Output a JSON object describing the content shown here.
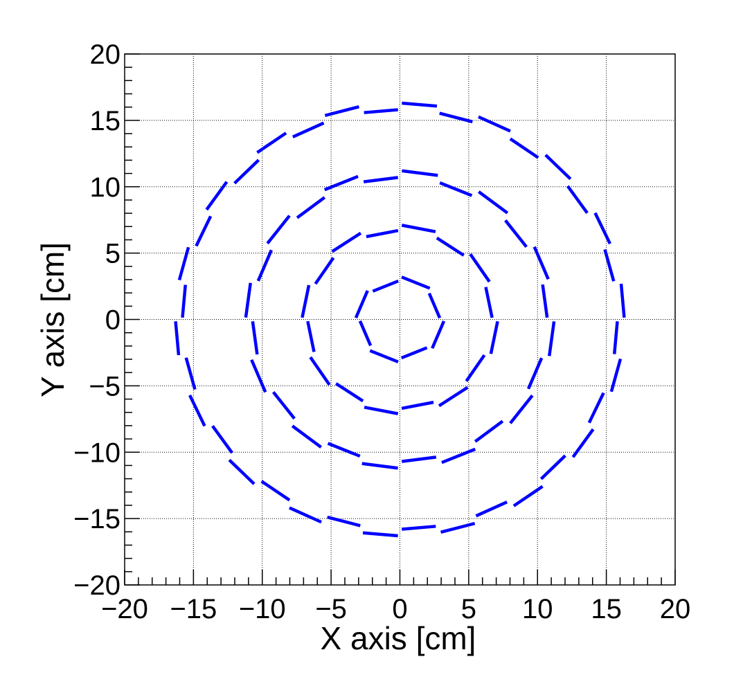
{
  "chart_data": {
    "type": "segments",
    "x_label": "X axis [cm]",
    "y_label": "Y axis [cm]",
    "xlim": [
      -20,
      20
    ],
    "ylim": [
      -20,
      20
    ],
    "xticks": [
      {
        "value": -20,
        "label": "−20"
      },
      {
        "value": -15,
        "label": "−15"
      },
      {
        "value": -10,
        "label": "−10"
      },
      {
        "value": -5,
        "label": "−5"
      },
      0,
      5,
      10,
      15,
      20
    ],
    "yticks": [
      {
        "value": -20,
        "label": "−20"
      },
      {
        "value": -15,
        "label": "−15"
      },
      {
        "value": -10,
        "label": "−10"
      },
      {
        "value": -5,
        "label": "−5"
      },
      0,
      5,
      10,
      15,
      20
    ],
    "grid": true,
    "color": "#0000ff",
    "layers": [
      {
        "radius": 2.9,
        "segments": 4
      },
      {
        "radius": 3.2,
        "segments": 4
      },
      {
        "radius": 6.7,
        "segments": 8
      },
      {
        "radius": 7.1,
        "segments": 8
      },
      {
        "radius": 10.7,
        "segments": 12
      },
      {
        "radius": 11.2,
        "segments": 12
      },
      {
        "radius": 15.8,
        "segments": 18
      },
      {
        "radius": 16.3,
        "segments": 18
      }
    ]
  }
}
